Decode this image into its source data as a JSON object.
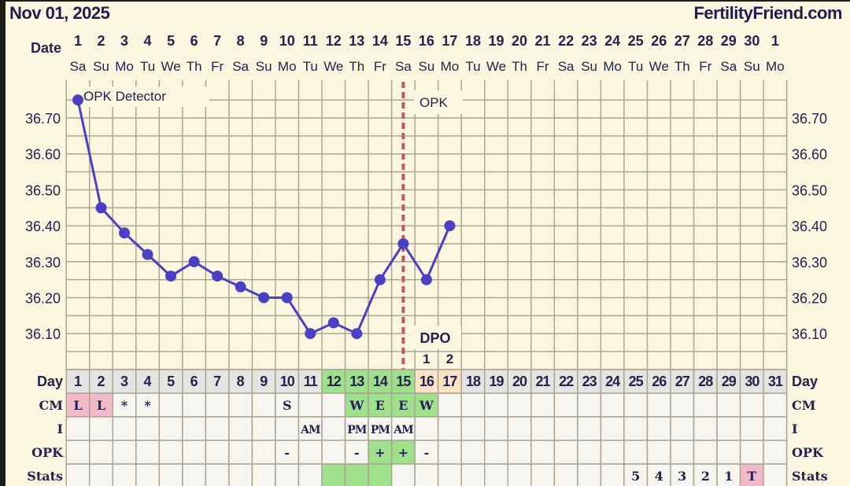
{
  "header": {
    "date": "Nov 01, 2025",
    "site": "FertilityFriend.com"
  },
  "date_row": {
    "label": "Date",
    "dates": [
      "1",
      "2",
      "3",
      "4",
      "5",
      "6",
      "7",
      "8",
      "9",
      "10",
      "11",
      "12",
      "13",
      "14",
      "15",
      "16",
      "17",
      "18",
      "19",
      "20",
      "21",
      "22",
      "23",
      "24",
      "25",
      "26",
      "27",
      "28",
      "29",
      "30",
      "1"
    ],
    "weekdays": [
      "Sa",
      "Su",
      "Mo",
      "Tu",
      "We",
      "Th",
      "Fr",
      "Sa",
      "Su",
      "Mo",
      "Tu",
      "We",
      "Th",
      "Fr",
      "Sa",
      "Su",
      "Mo",
      "Tu",
      "We",
      "Th",
      "Fr",
      "Sa",
      "Su",
      "Mo",
      "Tu",
      "We",
      "Th",
      "Fr",
      "Sa",
      "Su",
      "Mo"
    ]
  },
  "chart_data": {
    "type": "line",
    "x": [
      1,
      2,
      3,
      4,
      5,
      6,
      7,
      8,
      9,
      10,
      11,
      12,
      13,
      14,
      15,
      16,
      17
    ],
    "values": [
      36.75,
      36.45,
      36.38,
      36.32,
      36.26,
      36.3,
      36.26,
      36.23,
      36.2,
      36.2,
      36.1,
      36.13,
      36.1,
      36.25,
      36.35,
      36.25,
      36.4
    ],
    "xlim": [
      1,
      31
    ],
    "ylim": [
      36.0,
      36.8
    ],
    "yticks": [
      "36.70",
      "36.60",
      "36.50",
      "36.40",
      "36.30",
      "36.20",
      "36.10"
    ],
    "grid": true,
    "ovulation_day": 15,
    "annotations": {
      "opk_detector": "OPK Detector",
      "opk": "OPK",
      "dpo": "DPO"
    },
    "dpo": [
      {
        "day": 16,
        "label": "1"
      },
      {
        "day": 17,
        "label": "2"
      }
    ],
    "colors": {
      "line": "#4b3fc4",
      "ovulation": "#cc5555",
      "grid": "#aba690",
      "background": "#fbf6df"
    }
  },
  "table": {
    "rows": [
      {
        "label": "Day",
        "cells": [
          "1",
          "2",
          "3",
          "4",
          "5",
          "6",
          "7",
          "8",
          "9",
          "10",
          "11",
          "12",
          "13",
          "14",
          "15",
          "16",
          "17",
          "18",
          "19",
          "20",
          "21",
          "22",
          "23",
          "24",
          "25",
          "26",
          "27",
          "28",
          "29",
          "30",
          "31"
        ],
        "fills": {
          "12": "green",
          "13": "green",
          "14": "green",
          "15": "green",
          "16": "peach",
          "17": "peach"
        }
      },
      {
        "label": "CM",
        "cells": [
          "L",
          "L",
          "*",
          "*",
          "",
          "",
          "",
          "",
          "",
          "S",
          "",
          "",
          "W",
          "E",
          "E",
          "W",
          "",
          "",
          "",
          "",
          "",
          "",
          "",
          "",
          "",
          "",
          "",
          "",
          "",
          "",
          ""
        ],
        "fills": {
          "1": "pink",
          "2": "pink",
          "13": "green",
          "14": "green",
          "15": "green",
          "16": "green"
        }
      },
      {
        "label": "I",
        "cells": [
          "",
          "",
          "",
          "",
          "",
          "",
          "",
          "",
          "",
          "",
          "AM",
          "",
          "PM",
          "PM",
          "AM",
          "",
          "",
          "",
          "",
          "",
          "",
          "",
          "",
          "",
          "",
          "",
          "",
          "",
          "",
          "",
          ""
        ],
        "fills": {}
      },
      {
        "label": "OPK",
        "cells": [
          "",
          "",
          "",
          "",
          "",
          "",
          "",
          "",
          "",
          "-",
          "",
          "",
          "-",
          "+",
          "+",
          "-",
          "",
          "",
          "",
          "",
          "",
          "",
          "",
          "",
          "",
          "",
          "",
          "",
          "",
          "",
          ""
        ],
        "fills": {
          "14": "green",
          "15": "green"
        }
      },
      {
        "label": "Stats",
        "cells": [
          "",
          "",
          "",
          "",
          "",
          "",
          "",
          "",
          "",
          "",
          "",
          "",
          "",
          "",
          "",
          "",
          "",
          "",
          "",
          "",
          "",
          "",
          "",
          "",
          "5",
          "4",
          "3",
          "2",
          "1",
          "T",
          ""
        ],
        "fills": {
          "12": "green",
          "13": "green",
          "14": "green",
          "30": "pink"
        }
      }
    ],
    "colors": {
      "green": "#9fe08c",
      "pink": "#f2b9c8",
      "peach": "#fde2c6",
      "day_bg": "#e4e4e2",
      "cell_bg": "#f6f5ef"
    }
  }
}
